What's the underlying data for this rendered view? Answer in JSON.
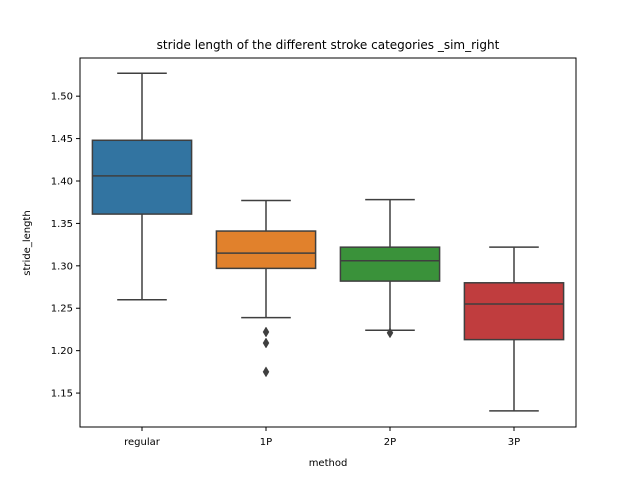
{
  "chart_data": {
    "type": "box",
    "title": "stride length of the different stroke categories _sim_right",
    "xlabel": "method",
    "ylabel": "stride_length",
    "ylim": [
      1.11,
      1.545
    ],
    "yticks": [
      "1.15",
      "1.20",
      "1.25",
      "1.30",
      "1.35",
      "1.40",
      "1.45",
      "1.50"
    ],
    "grid": false,
    "legend": "none",
    "categories": [
      "regular",
      "1P",
      "2P",
      "3P"
    ],
    "boxes": [
      {
        "category": "regular",
        "color": "#3274a1",
        "whisker_low": 1.26,
        "q1": 1.361,
        "median": 1.406,
        "q3": 1.448,
        "whisker_high": 1.527,
        "outliers": []
      },
      {
        "category": "1P",
        "color": "#e1812c",
        "whisker_low": 1.239,
        "q1": 1.297,
        "median": 1.315,
        "q3": 1.341,
        "whisker_high": 1.377,
        "outliers": [
          1.222,
          1.209,
          1.175
        ]
      },
      {
        "category": "2P",
        "color": "#3a923a",
        "whisker_low": 1.224,
        "q1": 1.282,
        "median": 1.306,
        "q3": 1.322,
        "whisker_high": 1.378,
        "outliers": [
          1.221
        ]
      },
      {
        "category": "3P",
        "color": "#c03d3e",
        "whisker_low": 1.129,
        "q1": 1.213,
        "median": 1.255,
        "q3": 1.28,
        "whisker_high": 1.322,
        "outliers": []
      }
    ],
    "line_color": "#3f3f3f"
  }
}
